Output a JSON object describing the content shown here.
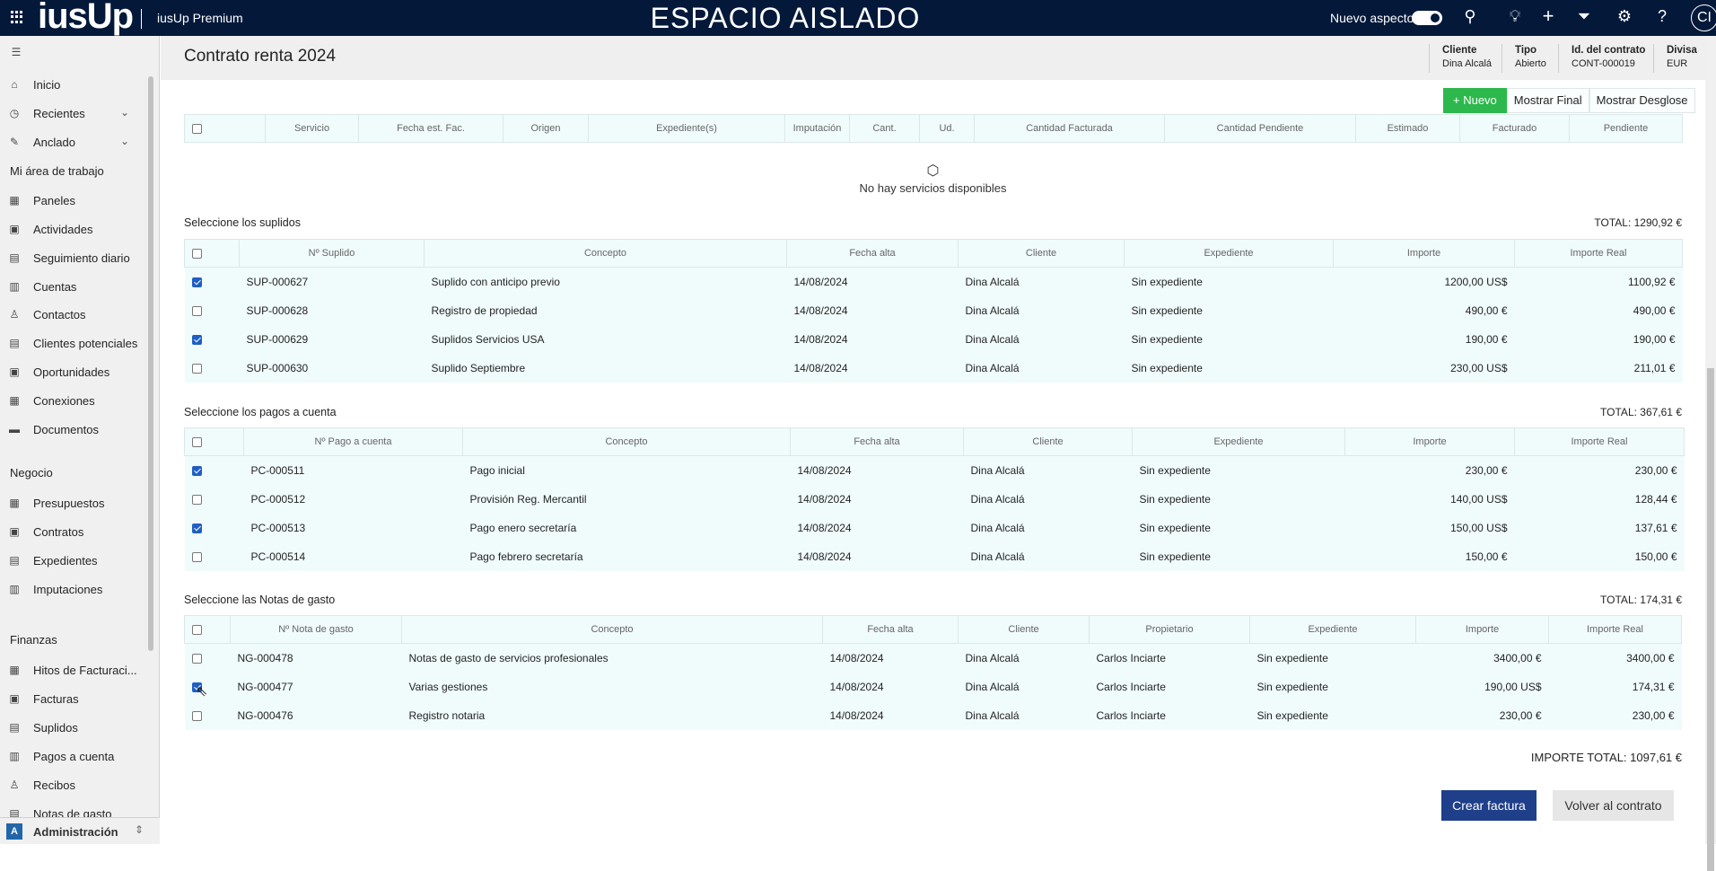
{
  "topbar": {
    "logo": "iusUp",
    "app_name": "iusUp Premium",
    "environment": "ESPACIO AISLADO",
    "new_look_label": "Nuevo aspecto",
    "new_look_on": true,
    "avatar_initials": "CI"
  },
  "sidebar": {
    "items": [
      {
        "label": "Inicio",
        "icon": "home-icon"
      },
      {
        "label": "Recientes",
        "icon": "clock-icon",
        "expandable": true
      },
      {
        "label": "Anclado",
        "icon": "pin-icon",
        "expandable": true
      }
    ],
    "groups": [
      {
        "title": "Mi área de trabajo",
        "items": [
          {
            "label": "Paneles"
          },
          {
            "label": "Actividades"
          },
          {
            "label": "Seguimiento diario"
          },
          {
            "label": "Cuentas"
          },
          {
            "label": "Contactos"
          },
          {
            "label": "Clientes potenciales"
          },
          {
            "label": "Oportunidades"
          },
          {
            "label": "Conexiones"
          },
          {
            "label": "Documentos"
          }
        ]
      },
      {
        "title": "Negocio",
        "items": [
          {
            "label": "Presupuestos"
          },
          {
            "label": "Contratos"
          },
          {
            "label": "Expedientes"
          },
          {
            "label": "Imputaciones"
          }
        ]
      },
      {
        "title": "Finanzas",
        "items": [
          {
            "label": "Hitos de Facturaci..."
          },
          {
            "label": "Facturas"
          },
          {
            "label": "Suplidos"
          },
          {
            "label": "Pagos a cuenta"
          },
          {
            "label": "Recibos"
          },
          {
            "label": "Notas de gasto"
          }
        ]
      }
    ],
    "area": {
      "badge": "A",
      "label": "Administración"
    }
  },
  "header": {
    "title": "Contrato renta 2024",
    "fields": [
      {
        "label": "Cliente",
        "value": "Dina Alcalá"
      },
      {
        "label": "Tipo",
        "value": "Abierto"
      },
      {
        "label": "Id. del contrato",
        "value": "CONT-000019"
      },
      {
        "label": "Divisa",
        "value": "EUR"
      }
    ]
  },
  "toolbar": {
    "new_label": "+ Nuevo",
    "show_final": "Mostrar Final",
    "show_breakdown": "Mostrar Desglose"
  },
  "services": {
    "columns": [
      "Servicio",
      "Fecha est. Fac.",
      "Origen",
      "Expediente(s)",
      "Imputación",
      "Cant.",
      "Ud.",
      "Cantidad Facturada",
      "Cantidad Pendiente",
      "Estimado",
      "Facturado",
      "Pendiente"
    ],
    "empty_message": "No hay servicios disponibles"
  },
  "suplidos": {
    "title": "Seleccione los suplidos",
    "total": "TOTAL: 1290,92 €",
    "columns": [
      "Nº Suplido",
      "Concepto",
      "Fecha alta",
      "Cliente",
      "Expediente",
      "Importe",
      "Importe Real"
    ],
    "rows": [
      {
        "checked": true,
        "cells": [
          "SUP-000627",
          "Suplido con anticipo previo",
          "14/08/2024",
          "Dina Alcalá",
          "Sin expediente",
          "1200,00 US$",
          "1100,92 €"
        ]
      },
      {
        "checked": false,
        "cells": [
          "SUP-000628",
          "Registro de propiedad",
          "14/08/2024",
          "Dina Alcalá",
          "Sin expediente",
          "490,00 €",
          "490,00 €"
        ]
      },
      {
        "checked": true,
        "cells": [
          "SUP-000629",
          "Suplidos Servicios USA",
          "14/08/2024",
          "Dina Alcalá",
          "Sin expediente",
          "190,00 €",
          "190,00 €"
        ]
      },
      {
        "checked": false,
        "cells": [
          "SUP-000630",
          "Suplido Septiembre",
          "14/08/2024",
          "Dina Alcalá",
          "Sin expediente",
          "230,00 US$",
          "211,01 €"
        ]
      }
    ]
  },
  "pagos": {
    "title": "Seleccione los pagos a cuenta",
    "total": "TOTAL: 367,61 €",
    "columns": [
      "Nº Pago a cuenta",
      "Concepto",
      "Fecha alta",
      "Cliente",
      "Expediente",
      "Importe",
      "Importe Real"
    ],
    "rows": [
      {
        "checked": true,
        "cells": [
          "PC-000511",
          "Pago inicial",
          "14/08/2024",
          "Dina Alcalá",
          "Sin expediente",
          "230,00 €",
          "230,00 €"
        ]
      },
      {
        "checked": false,
        "cells": [
          "PC-000512",
          "Provisión Reg. Mercantil",
          "14/08/2024",
          "Dina Alcalá",
          "Sin expediente",
          "140,00 US$",
          "128,44 €"
        ]
      },
      {
        "checked": true,
        "cells": [
          "PC-000513",
          "Pago enero secretaría",
          "14/08/2024",
          "Dina Alcalá",
          "Sin expediente",
          "150,00 US$",
          "137,61 €"
        ]
      },
      {
        "checked": false,
        "cells": [
          "PC-000514",
          "Pago febrero secretaría",
          "14/08/2024",
          "Dina Alcalá",
          "Sin expediente",
          "150,00 €",
          "150,00 €"
        ]
      }
    ]
  },
  "notas": {
    "title": "Seleccione las Notas de gasto",
    "total": "TOTAL: 174,31 €",
    "columns": [
      "Nº Nota de gasto",
      "Concepto",
      "Fecha alta",
      "Cliente",
      "Propietario",
      "Expediente",
      "Importe",
      "Importe Real"
    ],
    "rows": [
      {
        "checked": false,
        "cells": [
          "NG-000478",
          "Notas de gasto de servicios profesionales",
          "14/08/2024",
          "Dina Alcalá",
          "Carlos Inciarte",
          "Sin expediente",
          "3400,00 €",
          "3400,00 €"
        ]
      },
      {
        "checked": true,
        "cells": [
          "NG-000477",
          "Varias gestiones",
          "14/08/2024",
          "Dina Alcalá",
          "Carlos Inciarte",
          "Sin expediente",
          "190,00 US$",
          "174,31 €"
        ]
      },
      {
        "checked": false,
        "cells": [
          "NG-000476",
          "Registro notaria",
          "14/08/2024",
          "Dina Alcalá",
          "Carlos Inciarte",
          "Sin expediente",
          "230,00 €",
          "230,00 €"
        ]
      }
    ]
  },
  "grand_total": "IMPORTE TOTAL: 1097,61 €",
  "actions": {
    "create_invoice": "Crear factura",
    "back_to_contract": "Volver al contrato"
  },
  "colors": {
    "topbar": "#04193a",
    "new_button": "#2db84d",
    "primary_button": "#1f3f8a",
    "checkbox_checked": "#1f5fc4",
    "row_bg": "#f0fbfb"
  }
}
